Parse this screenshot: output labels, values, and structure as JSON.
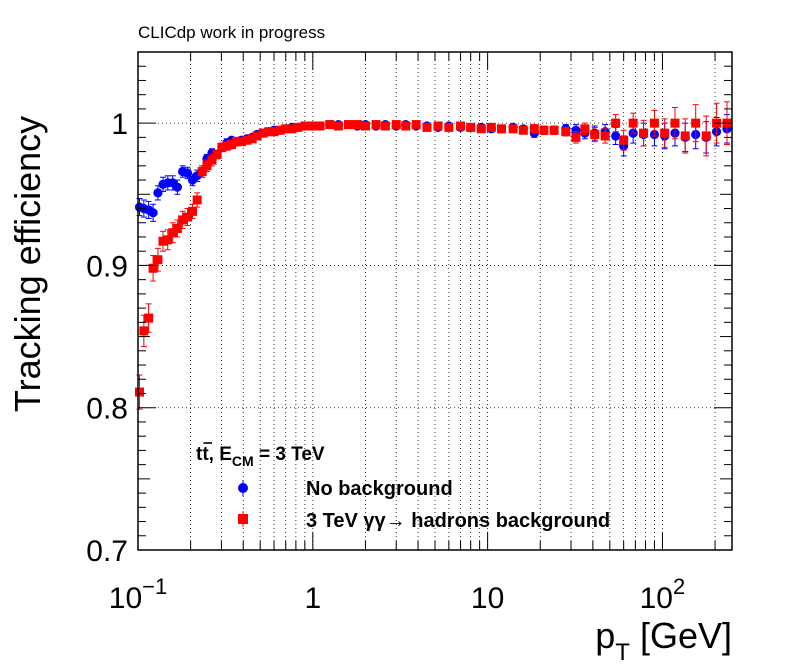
{
  "chart_data": {
    "type": "scatter",
    "header": "CLICdp work in progress",
    "xlabel_main": "p",
    "xlabel_sub": "T",
    "xlabel_unit": "[GeV]",
    "ylabel": "Tracking efficiency",
    "x_scale": "log",
    "xlim": [
      0.1,
      250
    ],
    "ylim": [
      0.7,
      1.05
    ],
    "grid": true,
    "y_ticks": [
      {
        "value": 0.7,
        "label": "0.7"
      },
      {
        "value": 0.8,
        "label": "0.8"
      },
      {
        "value": 0.9,
        "label": "0.9"
      },
      {
        "value": 1.0,
        "label": "1"
      }
    ],
    "x_ticks": [
      {
        "value": 0.1,
        "base": "10",
        "exp": "−1"
      },
      {
        "value": 1,
        "base": "1",
        "exp": ""
      },
      {
        "value": 10,
        "base": "10",
        "exp": ""
      },
      {
        "value": 100,
        "base": "10",
        "exp": "2"
      }
    ],
    "legend": {
      "position": "bottom-left",
      "title_main": "t",
      "title_bar": "t",
      "title_mid": ", E",
      "title_sub": "CM",
      "title_end": " = 3 TeV",
      "entries": [
        {
          "label": "No background",
          "color": "#0000ff",
          "marker": "circle"
        },
        {
          "label": "3 TeV  γγ→ hadrons background",
          "color": "#ff0000",
          "marker": "square"
        }
      ]
    },
    "series": [
      {
        "name": "No background",
        "color": "#0000ff",
        "marker": "circle",
        "points": [
          [
            0.102,
            0.941,
            0.006
          ],
          [
            0.108,
            0.94,
            0.006
          ],
          [
            0.115,
            0.939,
            0.006
          ],
          [
            0.122,
            0.937,
            0.006
          ],
          [
            0.13,
            0.951,
            0.005
          ],
          [
            0.139,
            0.957,
            0.005
          ],
          [
            0.148,
            0.958,
            0.005
          ],
          [
            0.158,
            0.958,
            0.005
          ],
          [
            0.168,
            0.955,
            0.005
          ],
          [
            0.18,
            0.966,
            0.004
          ],
          [
            0.192,
            0.965,
            0.004
          ],
          [
            0.205,
            0.96,
            0.004
          ],
          [
            0.218,
            0.963,
            0.004
          ],
          [
            0.233,
            0.966,
            0.004
          ],
          [
            0.248,
            0.975,
            0.003
          ],
          [
            0.265,
            0.979,
            0.003
          ],
          [
            0.283,
            0.978,
            0.003
          ],
          [
            0.302,
            0.983,
            0.003
          ],
          [
            0.322,
            0.986,
            0.003
          ],
          [
            0.343,
            0.988,
            0.002
          ],
          [
            0.366,
            0.987,
            0.002
          ],
          [
            0.39,
            0.988,
            0.002
          ],
          [
            0.42,
            0.989,
            0.002
          ],
          [
            0.45,
            0.99,
            0.002
          ],
          [
            0.48,
            0.992,
            0.002
          ],
          [
            0.52,
            0.993,
            0.002
          ],
          [
            0.56,
            0.994,
            0.002
          ],
          [
            0.6,
            0.995,
            0.002
          ],
          [
            0.65,
            0.995,
            0.002
          ],
          [
            0.7,
            0.996,
            0.002
          ],
          [
            0.76,
            0.997,
            0.002
          ],
          [
            0.82,
            0.997,
            0.002
          ],
          [
            0.9,
            0.998,
            0.001
          ],
          [
            1.0,
            0.998,
            0.001
          ],
          [
            1.1,
            0.998,
            0.001
          ],
          [
            1.25,
            0.999,
            0.001
          ],
          [
            1.4,
            0.999,
            0.001
          ],
          [
            1.6,
            0.999,
            0.001
          ],
          [
            1.8,
            0.998,
            0.001
          ],
          [
            2.0,
            0.999,
            0.001
          ],
          [
            2.3,
            0.998,
            0.001
          ],
          [
            2.6,
            0.999,
            0.001
          ],
          [
            3.0,
            0.998,
            0.001
          ],
          [
            3.4,
            0.999,
            0.001
          ],
          [
            3.9,
            0.998,
            0.001
          ],
          [
            4.5,
            0.998,
            0.001
          ],
          [
            5.2,
            0.997,
            0.001
          ],
          [
            6.0,
            0.998,
            0.001
          ],
          [
            7.0,
            0.997,
            0.002
          ],
          [
            8.0,
            0.997,
            0.002
          ],
          [
            9.2,
            0.997,
            0.002
          ],
          [
            10.5,
            0.996,
            0.002
          ],
          [
            12.0,
            0.996,
            0.002
          ],
          [
            14.0,
            0.997,
            0.002
          ],
          [
            16.0,
            0.996,
            0.002
          ],
          [
            18.5,
            0.993,
            0.003
          ],
          [
            21.0,
            0.995,
            0.003
          ],
          [
            24.0,
            0.995,
            0.003
          ],
          [
            28.0,
            0.996,
            0.003
          ],
          [
            32.0,
            0.995,
            0.004
          ],
          [
            36.0,
            0.993,
            0.004
          ],
          [
            41.0,
            0.993,
            0.005
          ],
          [
            47.0,
            0.994,
            0.005
          ],
          [
            54.0,
            0.991,
            0.006
          ],
          [
            60.0,
            0.984,
            0.007
          ],
          [
            68.0,
            0.993,
            0.007
          ],
          [
            78.0,
            0.992,
            0.008
          ],
          [
            90.0,
            0.992,
            0.008
          ],
          [
            103.0,
            0.991,
            0.009
          ],
          [
            118.0,
            0.993,
            0.009
          ],
          [
            135.0,
            0.99,
            0.01
          ],
          [
            155.0,
            0.992,
            0.01
          ],
          [
            178.0,
            0.99,
            0.011
          ],
          [
            204.0,
            0.994,
            0.01
          ],
          [
            234.0,
            0.996,
            0.01
          ]
        ]
      },
      {
        "name": "3 TeV  γγ→ hadrons background",
        "color": "#ff0000",
        "marker": "square",
        "points": [
          [
            0.102,
            0.811,
            0.012
          ],
          [
            0.108,
            0.854,
            0.011
          ],
          [
            0.115,
            0.863,
            0.01
          ],
          [
            0.122,
            0.898,
            0.009
          ],
          [
            0.13,
            0.904,
            0.008
          ],
          [
            0.139,
            0.917,
            0.007
          ],
          [
            0.148,
            0.918,
            0.007
          ],
          [
            0.158,
            0.923,
            0.007
          ],
          [
            0.168,
            0.926,
            0.006
          ],
          [
            0.18,
            0.932,
            0.006
          ],
          [
            0.192,
            0.934,
            0.006
          ],
          [
            0.205,
            0.938,
            0.005
          ],
          [
            0.218,
            0.946,
            0.005
          ],
          [
            0.233,
            0.966,
            0.004
          ],
          [
            0.248,
            0.97,
            0.004
          ],
          [
            0.265,
            0.974,
            0.004
          ],
          [
            0.283,
            0.978,
            0.003
          ],
          [
            0.302,
            0.983,
            0.003
          ],
          [
            0.322,
            0.984,
            0.003
          ],
          [
            0.343,
            0.985,
            0.003
          ],
          [
            0.366,
            0.987,
            0.003
          ],
          [
            0.39,
            0.987,
            0.002
          ],
          [
            0.42,
            0.988,
            0.002
          ],
          [
            0.45,
            0.989,
            0.002
          ],
          [
            0.48,
            0.991,
            0.002
          ],
          [
            0.52,
            0.993,
            0.002
          ],
          [
            0.56,
            0.994,
            0.002
          ],
          [
            0.6,
            0.994,
            0.002
          ],
          [
            0.65,
            0.995,
            0.002
          ],
          [
            0.7,
            0.996,
            0.002
          ],
          [
            0.76,
            0.996,
            0.002
          ],
          [
            0.82,
            0.997,
            0.002
          ],
          [
            0.9,
            0.998,
            0.001
          ],
          [
            1.0,
            0.998,
            0.001
          ],
          [
            1.1,
            0.998,
            0.001
          ],
          [
            1.25,
            0.999,
            0.001
          ],
          [
            1.4,
            0.998,
            0.001
          ],
          [
            1.6,
            0.999,
            0.001
          ],
          [
            1.8,
            0.999,
            0.001
          ],
          [
            2.0,
            0.998,
            0.001
          ],
          [
            2.3,
            0.999,
            0.001
          ],
          [
            2.6,
            0.998,
            0.001
          ],
          [
            3.0,
            0.999,
            0.001
          ],
          [
            3.4,
            0.998,
            0.001
          ],
          [
            3.9,
            0.999,
            0.001
          ],
          [
            4.5,
            0.997,
            0.001
          ],
          [
            5.2,
            0.998,
            0.001
          ],
          [
            6.0,
            0.997,
            0.001
          ],
          [
            7.0,
            0.998,
            0.002
          ],
          [
            8.0,
            0.997,
            0.002
          ],
          [
            9.2,
            0.996,
            0.002
          ],
          [
            10.5,
            0.997,
            0.002
          ],
          [
            12.0,
            0.996,
            0.002
          ],
          [
            14.0,
            0.996,
            0.002
          ],
          [
            16.0,
            0.995,
            0.002
          ],
          [
            18.5,
            0.996,
            0.003
          ],
          [
            21.0,
            0.995,
            0.003
          ],
          [
            24.0,
            0.995,
            0.003
          ],
          [
            28.0,
            0.994,
            0.003
          ],
          [
            32.0,
            0.99,
            0.004
          ],
          [
            36.0,
            0.996,
            0.004
          ],
          [
            41.0,
            0.992,
            0.005
          ],
          [
            47.0,
            0.991,
            0.005
          ],
          [
            54.0,
            1.0,
            0.006
          ],
          [
            60.0,
            0.988,
            0.007
          ],
          [
            68.0,
            1.0,
            0.007
          ],
          [
            78.0,
            0.993,
            0.009
          ],
          [
            90.0,
            1.0,
            0.009
          ],
          [
            103.0,
            0.993,
            0.01
          ],
          [
            118.0,
            1.0,
            0.011
          ],
          [
            135.0,
            0.991,
            0.012
          ],
          [
            155.0,
            1.0,
            0.013
          ],
          [
            178.0,
            0.991,
            0.014
          ],
          [
            204.0,
            1.0,
            0.014
          ],
          [
            234.0,
            1.0,
            0.015
          ]
        ]
      }
    ]
  }
}
